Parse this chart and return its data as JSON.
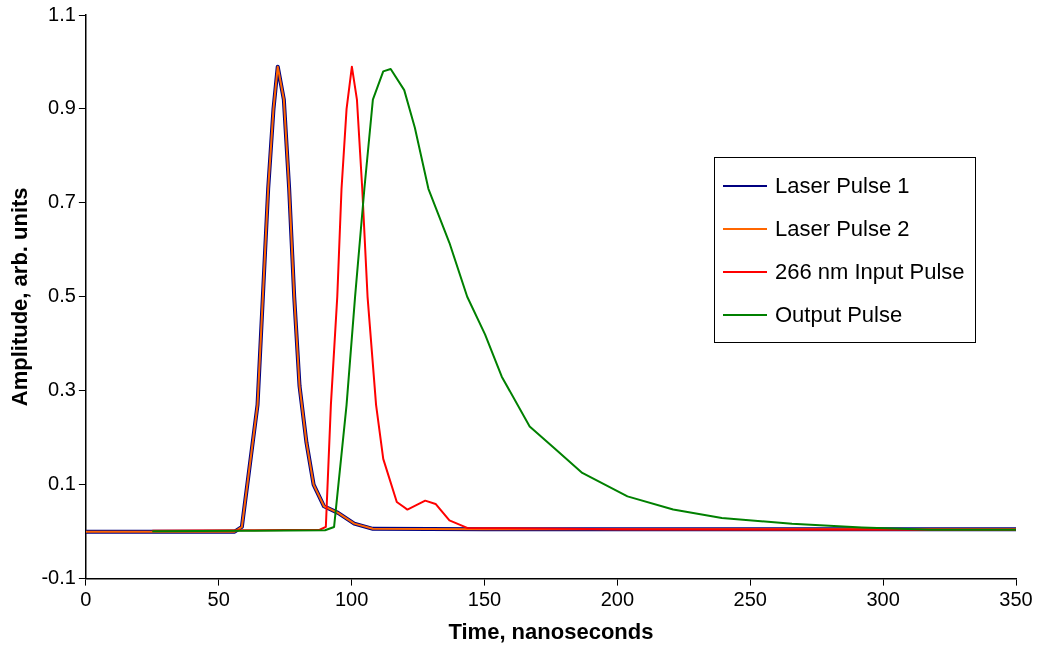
{
  "chart_data": {
    "type": "line",
    "xlabel": "Time, nanoseconds",
    "ylabel": "Amplitude, arb. units",
    "xlim": [
      0,
      350
    ],
    "xticks": [
      0,
      50,
      100,
      150,
      200,
      250,
      300,
      350
    ],
    "ylim": [
      -0.1,
      1.1
    ],
    "yticks": [
      -0.1,
      0.1,
      0.3,
      0.5,
      0.7,
      0.9,
      1.1
    ],
    "grid": false,
    "legend": "right",
    "marker": "none",
    "line_style": "solid",
    "series": [
      {
        "name": "Laser Pulse 1",
        "color": "#000080",
        "x": [
          0,
          50,
          56,
          58.7,
          64.6,
          66.6,
          68.6,
          70.6,
          72.2,
          74.5,
          76.5,
          78.4,
          80.4,
          83,
          85.7,
          89.6,
          94.9,
          101,
          108,
          150,
          350
        ],
        "values": [
          0,
          0,
          0,
          0.01,
          0.27,
          0.5,
          0.73,
          0.9,
          0.99,
          0.92,
          0.73,
          0.5,
          0.31,
          0.19,
          0.1,
          0.054,
          0.04,
          0.017,
          0.006,
          0.005,
          0.005
        ]
      },
      {
        "name": "Laser Pulse 2",
        "color": "#ff6600",
        "x": [
          0,
          50,
          56,
          58.7,
          64.6,
          66.6,
          68.6,
          70.6,
          72.2,
          74.5,
          76.5,
          78.4,
          80.4,
          83,
          85.7,
          89.6,
          94.9,
          101,
          108,
          150,
          350
        ],
        "values": [
          0,
          0,
          0,
          0.01,
          0.27,
          0.5,
          0.73,
          0.9,
          0.99,
          0.92,
          0.73,
          0.5,
          0.31,
          0.19,
          0.1,
          0.054,
          0.04,
          0.017,
          0.006,
          0.005,
          0.005
        ]
      },
      {
        "name": "266 nm Input Pulse",
        "color": "#ff0000",
        "x": [
          25,
          60,
          88,
          90.3,
          92.2,
          94.6,
          96.2,
          98.1,
          100.1,
          102,
          104,
          106,
          109.2,
          111.9,
          117,
          121,
          127.7,
          131.6,
          136.8,
          143.5,
          200,
          350
        ],
        "values": [
          0.002,
          0.003,
          0.004,
          0.01,
          0.27,
          0.5,
          0.73,
          0.9,
          0.99,
          0.92,
          0.73,
          0.5,
          0.27,
          0.155,
          0.063,
          0.047,
          0.066,
          0.059,
          0.024,
          0.008,
          0.005,
          0.004
        ]
      },
      {
        "name": "Output Pulse",
        "color": "#008000",
        "x": [
          25,
          60,
          90,
          93.4,
          98.1,
          101.3,
          104.8,
          108,
          111.9,
          114.7,
          119.8,
          123.8,
          128.9,
          136.8,
          143.5,
          150.2,
          156.5,
          167,
          176.2,
          186.8,
          203.8,
          221,
          239.3,
          265.7,
          292,
          318,
          350
        ],
        "values": [
          0.001,
          0.002,
          0.003,
          0.01,
          0.27,
          0.5,
          0.73,
          0.92,
          0.98,
          0.985,
          0.94,
          0.86,
          0.73,
          0.615,
          0.5,
          0.42,
          0.33,
          0.224,
          0.178,
          0.125,
          0.075,
          0.047,
          0.029,
          0.017,
          0.009,
          0.004,
          0.004
        ]
      }
    ]
  }
}
